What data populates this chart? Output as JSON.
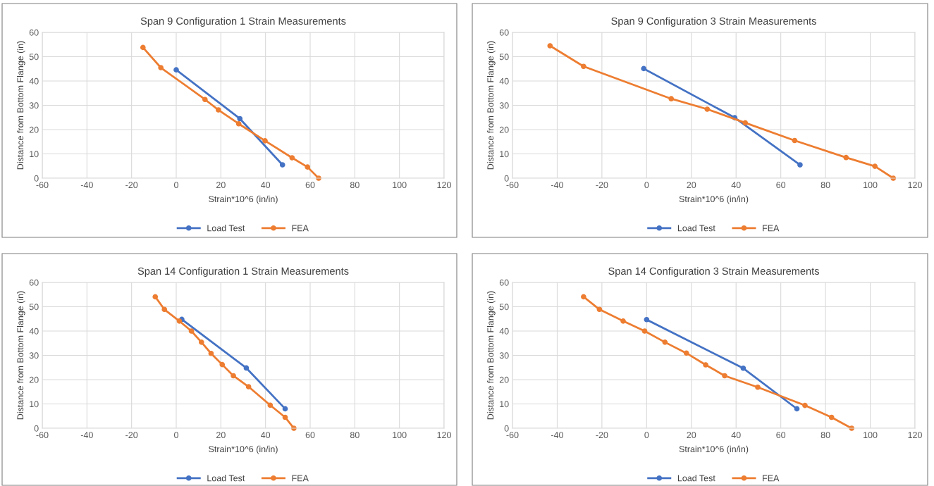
{
  "chart_data": [
    {
      "type": "line",
      "title": "Span 9 Configuration 1 Strain Measurements",
      "xlabel": "Strain*10^6 (in/in)",
      "ylabel": "Distance from Bottom Flange (in)",
      "xlim": [
        -60,
        120
      ],
      "xticks": [
        -60,
        -40,
        -20,
        0,
        20,
        40,
        60,
        80,
        100,
        120
      ],
      "ylim": [
        0,
        60
      ],
      "yticks": [
        0,
        10,
        20,
        30,
        40,
        50,
        60
      ],
      "grid": true,
      "legend": "bottom",
      "marker": "circle",
      "series": [
        {
          "name": "Load Test",
          "color": "#4472c4",
          "x": [
            0,
            28.5,
            47.6
          ],
          "values": [
            44.6,
            24.5,
            5.5
          ]
        },
        {
          "name": "FEA",
          "color": "#ed7d31",
          "x": [
            -14.9,
            -6.9,
            12.9,
            18.9,
            28,
            39.8,
            51.9,
            58.8,
            63.8
          ],
          "values": [
            53.8,
            45.5,
            32.4,
            28.1,
            22.4,
            15.4,
            8.4,
            4.6,
            0
          ]
        }
      ]
    },
    {
      "type": "line",
      "title": "Span 9 Configuration 3 Strain Measurements",
      "xlabel": "Strain*10^6 (in/in)",
      "ylabel": "Distance from Bottom Flange (in)",
      "xlim": [
        -60,
        120
      ],
      "xticks": [
        -60,
        -40,
        -20,
        0,
        20,
        40,
        60,
        80,
        100,
        120
      ],
      "ylim": [
        0,
        60
      ],
      "yticks": [
        0,
        10,
        20,
        30,
        40,
        50,
        60
      ],
      "grid": true,
      "legend": "bottom",
      "marker": "circle",
      "series": [
        {
          "name": "Load Test",
          "color": "#4472c4",
          "x": [
            -1.3,
            39.4,
            68.6
          ],
          "values": [
            45.1,
            24.9,
            5.5
          ]
        },
        {
          "name": "FEA",
          "color": "#ed7d31",
          "x": [
            -43.2,
            -28.2,
            11,
            27.1,
            44.1,
            66.2,
            89.2,
            102.1,
            110.3
          ],
          "values": [
            54.5,
            46,
            32.7,
            28.4,
            22.8,
            15.5,
            8.5,
            4.9,
            0
          ]
        }
      ]
    },
    {
      "type": "line",
      "title": "Span 14 Configuration 1 Strain Measurements",
      "xlabel": "Strain*10^6 (in/in)",
      "ylabel": "Distance from Bottom Flange (in)",
      "xlim": [
        -60,
        120
      ],
      "xticks": [
        -60,
        -40,
        -20,
        0,
        20,
        40,
        60,
        80,
        100,
        120
      ],
      "ylim": [
        0,
        60
      ],
      "yticks": [
        0,
        10,
        20,
        30,
        40,
        50,
        60
      ],
      "grid": true,
      "legend": "bottom",
      "marker": "circle",
      "series": [
        {
          "name": "Load Test",
          "color": "#4472c4",
          "x": [
            2.5,
            31.4,
            48.8
          ],
          "values": [
            44.8,
            24.8,
            8.0
          ]
        },
        {
          "name": "FEA",
          "color": "#ed7d31",
          "x": [
            -9.4,
            -5.3,
            1.4,
            6.8,
            11.3,
            15.6,
            20.6,
            25.6,
            32.4,
            42.1,
            48.8,
            52.7
          ],
          "values": [
            54.1,
            48.9,
            44.1,
            40,
            35.4,
            30.8,
            26.2,
            21.6,
            17.1,
            9.5,
            4.5,
            0
          ]
        }
      ]
    },
    {
      "type": "line",
      "title": "Span 14 Configuration 3 Strain Measurements",
      "xlabel": "Strain*10^6 (in/in)",
      "ylabel": "Distance from Bottom Flange (in)",
      "xlim": [
        -60,
        120
      ],
      "xticks": [
        -60,
        -40,
        -20,
        0,
        20,
        40,
        60,
        80,
        100,
        120
      ],
      "ylim": [
        0,
        60
      ],
      "yticks": [
        0,
        10,
        20,
        30,
        40,
        50,
        60
      ],
      "grid": true,
      "legend": "bottom",
      "marker": "circle",
      "series": [
        {
          "name": "Load Test",
          "color": "#4472c4",
          "x": [
            0,
            43.2,
            67.2
          ],
          "values": [
            44.7,
            24.7,
            8.0
          ]
        },
        {
          "name": "FEA",
          "color": "#ed7d31",
          "x": [
            -28.2,
            -21.1,
            -10.5,
            -0.9,
            8.2,
            17.8,
            26.4,
            34.9,
            49.7,
            70.8,
            82.7,
            91.7
          ],
          "values": [
            54.1,
            48.9,
            44.1,
            40,
            35.4,
            30.9,
            26.1,
            21.6,
            16.9,
            9.4,
            4.5,
            0
          ]
        }
      ]
    }
  ]
}
